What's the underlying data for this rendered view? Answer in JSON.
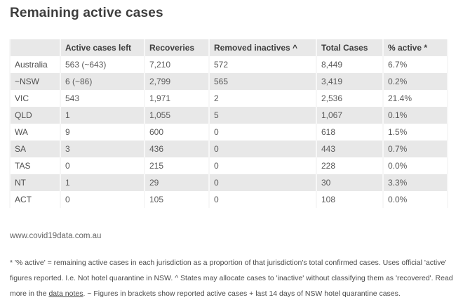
{
  "title": "Remaining active cases",
  "source_url": "www.covid19data.com.au",
  "chart_data": {
    "type": "table",
    "title": "Remaining active cases",
    "columns": [
      "",
      "Active cases left",
      "Recoveries",
      "Removed inactives ^",
      "Total Cases",
      "% active *"
    ],
    "rows": [
      [
        "Australia",
        "563 (~643)",
        "7,210",
        "572",
        "8,449",
        "6.7%"
      ],
      [
        "~NSW",
        "6 (~86)",
        "2,799",
        "565",
        "3,419",
        "0.2%"
      ],
      [
        "VIC",
        "543",
        "1,971",
        "2",
        "2,536",
        "21.4%"
      ],
      [
        "QLD",
        "1",
        "1,055",
        "5",
        "1,067",
        "0.1%"
      ],
      [
        "WA",
        "9",
        "600",
        "0",
        "618",
        "1.5%"
      ],
      [
        "SA",
        "3",
        "436",
        "0",
        "443",
        "0.7%"
      ],
      [
        "TAS",
        "0",
        "215",
        "0",
        "228",
        "0.0%"
      ],
      [
        "NT",
        "1",
        "29",
        "0",
        "30",
        "3.3%"
      ],
      [
        "ACT",
        "0",
        "105",
        "0",
        "108",
        "0.0%"
      ]
    ],
    "layout": {
      "stripe_color": "#e8e8e8",
      "header_bg": "#e8e8e8",
      "row_alt_color": "#ffffff"
    }
  },
  "footnote": {
    "part1": "* '% active' = remaining active cases in each jurisdiction as a proportion of that jurisdiction's total confirmed cases. Uses official 'active' figures reported. I.e. Not hotel quarantine in NSW. ^ States may allocate cases to 'inactive' without classifying them as 'recovered'. Read more in the ",
    "link_text": "data notes",
    "part2": ". ~ Figures in brackets show reported active cases + last 14 days of NSW hotel quarantine cases."
  },
  "colors": {
    "title_text": "#3d3d3d",
    "header_text": "#3d3d3d",
    "body_text": "#5a5a5a",
    "footnote_text": "#4a4a4a",
    "stripe": "#e8e8e8"
  }
}
